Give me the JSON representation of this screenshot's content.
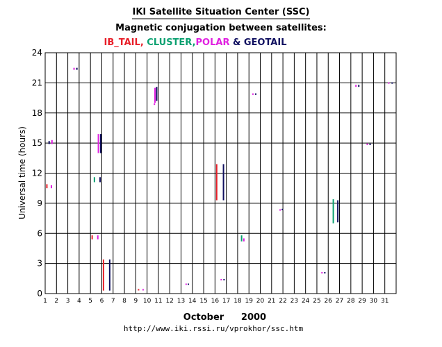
{
  "header": {
    "title": "IKI Satellite Situation Center (SSC)",
    "subtitle": "Magnetic conjugation between satellites:",
    "legend": [
      {
        "text": "IB_TAIL",
        "color": "#e8202a"
      },
      {
        "text": ", ",
        "color": "#e8202a"
      },
      {
        "text": "CLUSTER",
        "color": "#0aa070"
      },
      {
        "text": ",",
        "color": "#0aa070"
      },
      {
        "text": "POLAR",
        "color": "#e020e0"
      },
      {
        "text": " & GEOTAIL",
        "color": "#101060"
      }
    ]
  },
  "footer": {
    "month": "October",
    "year": "2000",
    "url": "http://www.iki.rssi.ru/vprokhor/ssc.htm"
  },
  "chart_data": {
    "type": "scatter",
    "xlabel": "",
    "ylabel": "Universal time (hours)",
    "xlim": [
      1,
      32
    ],
    "ylim": [
      0,
      24
    ],
    "x_ticks": [
      1,
      2,
      3,
      4,
      5,
      6,
      7,
      8,
      9,
      10,
      11,
      12,
      13,
      14,
      15,
      16,
      17,
      18,
      19,
      20,
      21,
      22,
      23,
      24,
      25,
      26,
      27,
      28,
      29,
      30,
      31
    ],
    "y_ticks": [
      0,
      3,
      6,
      9,
      12,
      15,
      18,
      21,
      24
    ],
    "grid": true,
    "colors": {
      "IB_TAIL": "#e8202a",
      "CLUSTER": "#0aa070",
      "POLAR": "#e020e0",
      "GEOTAIL": "#101060"
    },
    "series": [
      {
        "name": "IB_TAIL",
        "points": [
          {
            "day": 1.15,
            "t0": 10.5,
            "t1": 10.9
          },
          {
            "day": 5.15,
            "t0": 5.4,
            "t1": 5.8
          },
          {
            "day": 6.15,
            "t0": 0.3,
            "t1": 3.4
          },
          {
            "day": 9.25,
            "t0": 0.35,
            "t1": 0.45
          },
          {
            "day": 16.15,
            "t0": 9.3,
            "t1": 12.9
          }
        ]
      },
      {
        "name": "CLUSTER",
        "points": [
          {
            "day": 5.35,
            "t0": 11.1,
            "t1": 11.6
          },
          {
            "day": 18.35,
            "t0": 5.2,
            "t1": 5.8
          },
          {
            "day": 26.45,
            "t0": 7.0,
            "t1": 9.4
          }
        ]
      },
      {
        "name": "POLAR",
        "points": [
          {
            "day": 1.55,
            "t0": 10.5,
            "t1": 10.8
          },
          {
            "day": 1.6,
            "t0": 14.9,
            "t1": 15.3
          },
          {
            "day": 3.55,
            "t0": 22.3,
            "t1": 22.5
          },
          {
            "day": 5.65,
            "t0": 5.4,
            "t1": 5.8
          },
          {
            "day": 5.7,
            "t0": 14.0,
            "t1": 15.9
          },
          {
            "day": 9.65,
            "t0": 0.35,
            "t1": 0.45
          },
          {
            "day": 10.7,
            "t0": 19.0,
            "t1": 20.5
          },
          {
            "day": 10.65,
            "t0": 18.8,
            "t1": 18.95
          },
          {
            "day": 13.45,
            "t0": 0.9,
            "t1": 1.0
          },
          {
            "day": 16.55,
            "t0": 1.35,
            "t1": 1.45
          },
          {
            "day": 18.55,
            "t0": 5.2,
            "t1": 5.5
          },
          {
            "day": 19.35,
            "t0": 19.8,
            "t1": 19.95
          },
          {
            "day": 21.75,
            "t0": 8.3,
            "t1": 8.4
          },
          {
            "day": 25.45,
            "t0": 2.0,
            "t1": 2.15
          },
          {
            "day": 28.45,
            "t0": 20.6,
            "t1": 20.8
          },
          {
            "day": 29.45,
            "t0": 14.8,
            "t1": 14.95
          },
          {
            "day": 31.35,
            "t0": 20.95,
            "t1": 21.05
          }
        ]
      },
      {
        "name": "GEOTAIL",
        "points": [
          {
            "day": 1.35,
            "t0": 14.9,
            "t1": 15.2
          },
          {
            "day": 3.8,
            "t0": 22.3,
            "t1": 22.5
          },
          {
            "day": 5.85,
            "t0": 11.1,
            "t1": 11.6
          },
          {
            "day": 5.9,
            "t0": 14.0,
            "t1": 15.9
          },
          {
            "day": 6.7,
            "t0": 0.3,
            "t1": 3.4
          },
          {
            "day": 10.85,
            "t0": 19.2,
            "t1": 20.6
          },
          {
            "day": 13.65,
            "t0": 0.9,
            "t1": 1.0
          },
          {
            "day": 16.8,
            "t0": 1.35,
            "t1": 1.45
          },
          {
            "day": 16.75,
            "t0": 9.3,
            "t1": 12.9
          },
          {
            "day": 19.6,
            "t0": 19.8,
            "t1": 19.95
          },
          {
            "day": 21.95,
            "t0": 8.3,
            "t1": 8.45
          },
          {
            "day": 25.7,
            "t0": 2.0,
            "t1": 2.15
          },
          {
            "day": 26.85,
            "t0": 7.1,
            "t1": 9.3
          },
          {
            "day": 28.7,
            "t0": 20.6,
            "t1": 20.8
          },
          {
            "day": 29.7,
            "t0": 14.8,
            "t1": 14.95
          },
          {
            "day": 31.65,
            "t0": 20.95,
            "t1": 21.05
          }
        ]
      }
    ]
  }
}
